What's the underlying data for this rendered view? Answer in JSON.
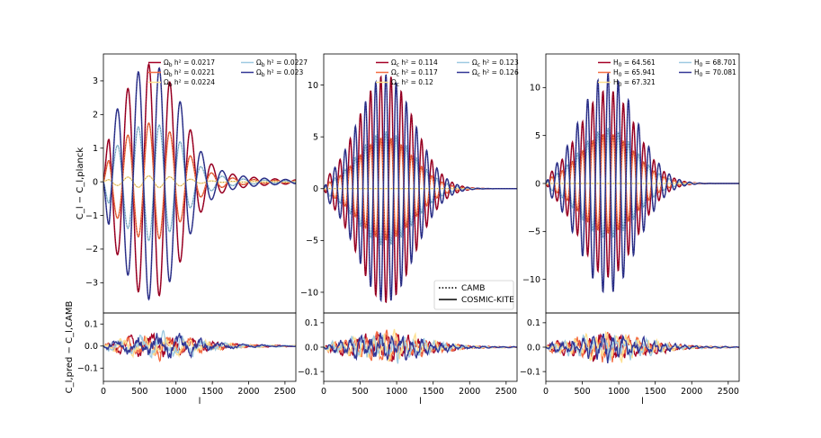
{
  "chart_data": {
    "type": "line",
    "x_range": [
      0,
      2650
    ],
    "x_ticks": [
      0,
      500,
      1000,
      1500,
      2000,
      2500
    ],
    "xlabel": "l",
    "ylabel_top": "C_l − C_l,planck",
    "ylabel_bottom": "C_l,pred − C_l,CAMB",
    "colors": [
      "#a50026",
      "#f46d43",
      "#fee090",
      "#9ecae1",
      "#313695"
    ],
    "line_styles": [
      {
        "label": "CAMB",
        "style": "dotted"
      },
      {
        "label": "COSMIC-KITE",
        "style": "solid"
      }
    ],
    "panels": [
      {
        "parameter": "Ω_b h²",
        "series": [
          {
            "name": "Ω_b h² = 0.0217",
            "scale": 1.0
          },
          {
            "name": "Ω_b h² = 0.0221",
            "scale": 0.5
          },
          {
            "name": "Ω_b h² = 0.0224",
            "scale": 0.05
          },
          {
            "name": "Ω_b h² = 0.0227",
            "scale": -0.5
          },
          {
            "name": "Ω_b h² = 0.023",
            "scale": -1.0
          }
        ],
        "amplitude": 3.5,
        "peaks_l": [
          390,
          670,
          980,
          1230,
          1500,
          1780,
          2060,
          2330,
          2600
        ],
        "top_ylim": [
          -3.9,
          3.8
        ],
        "top_yticks": [
          -3,
          -2,
          -1,
          0,
          1,
          2,
          3
        ],
        "bottom_ylim": [
          -0.16,
          0.15
        ],
        "bottom_yticks": [
          -0.1,
          0.0,
          0.1
        ],
        "legend_items": [
          "Ω_b h² = 0.0217",
          "Ω_b h² = 0.0227",
          "Ω_b h² = 0.0221",
          "Ω_b h² = 0.023",
          "Ω_b h² = 0.0224"
        ]
      },
      {
        "parameter": "Ω_c h²",
        "series": [
          {
            "name": "Ω_c h² = 0.114",
            "scale": -1.0
          },
          {
            "name": "Ω_c h² = 0.117",
            "scale": -0.45
          },
          {
            "name": "Ω_c h² = 0.12",
            "scale": 0.0
          },
          {
            "name": "Ω_c h² = 0.123",
            "scale": 0.5
          },
          {
            "name": "Ω_c h² = 0.126",
            "scale": 1.0
          }
        ],
        "amplitude": 11.0,
        "peaks_l": [
          760,
          890,
          1050,
          1200
        ],
        "top_ylim": [
          -12.0,
          13.0
        ],
        "top_yticks": [
          -10,
          -5,
          0,
          5,
          10
        ],
        "bottom_ylim": [
          -0.14,
          0.14
        ],
        "bottom_yticks": [
          -0.1,
          0.0,
          0.1
        ],
        "legend_items": [
          "Ω_c h² = 0.114",
          "Ω_c h² = 0.123",
          "Ω_c h² = 0.117",
          "Ω_c h² = 0.126",
          "Ω_c h² = 0.12"
        ]
      },
      {
        "parameter": "H_0",
        "series": [
          {
            "name": "H_0 = 64.561",
            "scale": -0.85
          },
          {
            "name": "H_0 = 65.941",
            "scale": -0.45
          },
          {
            "name": "H_0 = 67.321",
            "scale": 0.0
          },
          {
            "name": "H_0 = 68.701",
            "scale": 0.5
          },
          {
            "name": "H_0 = 70.081",
            "scale": 1.0
          }
        ],
        "amplitude": 11.5,
        "peaks_l": [
          700,
          820,
          960,
          1100
        ],
        "top_ylim": [
          -13.5,
          13.5
        ],
        "top_yticks": [
          -10,
          -5,
          0,
          5,
          10
        ],
        "bottom_ylim": [
          -0.14,
          0.14
        ],
        "bottom_yticks": [
          -0.1,
          0.0,
          0.1
        ],
        "legend_items": [
          "H_0 = 64.561",
          "H_0 = 68.701",
          "H_0 = 65.941",
          "H_0 = 70.081",
          "H_0 = 67.321"
        ]
      }
    ]
  }
}
